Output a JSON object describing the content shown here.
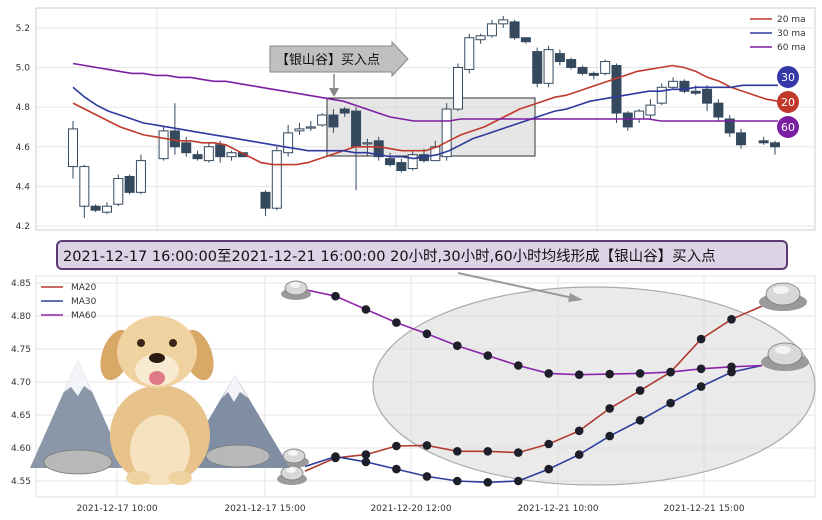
{
  "chart_data": [
    {
      "type": "candlestick",
      "title": "",
      "ylim": [
        4.18,
        5.3
      ],
      "y_ticks": [
        "5.2",
        "5.0",
        "4.8",
        "4.6",
        "4.4",
        "4.2"
      ],
      "legend": {
        "position": "top-right",
        "entries": [
          "20 ma",
          "30 ma",
          "60 ma"
        ]
      },
      "callout": "【银山谷】买入点",
      "badges": [
        "30",
        "20",
        "60"
      ],
      "candles": [
        [
          4.5,
          4.69,
          4.44,
          4.73
        ],
        [
          4.3,
          4.5,
          4.24,
          4.51
        ],
        [
          4.3,
          4.28,
          4.27,
          4.31
        ],
        [
          4.27,
          4.3,
          4.26,
          4.32
        ],
        [
          4.31,
          4.44,
          4.3,
          4.46
        ],
        [
          4.45,
          4.37,
          4.36,
          4.46
        ],
        [
          4.37,
          4.53,
          4.36,
          4.56
        ],
        [
          null,
          null,
          null,
          null
        ],
        [
          4.54,
          4.68,
          4.53,
          4.7
        ],
        [
          4.68,
          4.6,
          4.56,
          4.82
        ],
        [
          4.62,
          4.57,
          4.55,
          4.65
        ],
        [
          4.56,
          4.54,
          4.53,
          4.58
        ],
        [
          4.53,
          4.6,
          4.52,
          4.62
        ],
        [
          4.61,
          4.55,
          4.52,
          4.63
        ],
        [
          4.55,
          4.57,
          4.53,
          4.58
        ],
        [
          4.57,
          4.55,
          4.55,
          4.57
        ],
        [
          null,
          null,
          null,
          null
        ],
        [
          4.37,
          4.29,
          4.25,
          4.38
        ],
        [
          4.29,
          4.58,
          4.28,
          4.6
        ],
        [
          4.57,
          4.67,
          4.55,
          4.71
        ],
        [
          4.68,
          4.69,
          4.66,
          4.72
        ],
        [
          4.7,
          4.7,
          4.68,
          4.73
        ],
        [
          4.71,
          4.76,
          4.7,
          4.77
        ],
        [
          4.76,
          4.7,
          4.67,
          4.79
        ],
        [
          4.79,
          4.77,
          4.75,
          4.8
        ],
        [
          4.78,
          4.6,
          4.38,
          4.8
        ],
        [
          4.62,
          4.62,
          4.55,
          4.64
        ],
        [
          4.63,
          4.55,
          4.53,
          4.65
        ],
        [
          4.54,
          4.51,
          4.5,
          4.57
        ],
        [
          4.52,
          4.48,
          4.47,
          4.54
        ],
        [
          4.49,
          4.56,
          4.48,
          4.58
        ],
        [
          4.56,
          4.53,
          4.52,
          4.59
        ],
        [
          4.53,
          4.6,
          4.53,
          4.63
        ],
        [
          4.55,
          4.79,
          4.53,
          4.82
        ],
        [
          4.79,
          5.0,
          4.78,
          5.02
        ],
        [
          4.99,
          5.15,
          4.97,
          5.17
        ],
        [
          5.14,
          5.16,
          5.12,
          5.17
        ],
        [
          5.16,
          5.22,
          5.15,
          5.24
        ],
        [
          5.22,
          5.24,
          5.2,
          5.26
        ],
        [
          5.23,
          5.15,
          5.14,
          5.24
        ],
        [
          5.15,
          5.13,
          5.12,
          5.15
        ],
        [
          5.08,
          4.92,
          4.9,
          5.1
        ],
        [
          4.92,
          5.09,
          4.9,
          5.11
        ],
        [
          5.07,
          5.03,
          5.01,
          5.09
        ],
        [
          5.04,
          5.0,
          4.99,
          5.05
        ],
        [
          5.0,
          4.97,
          4.96,
          5.01
        ],
        [
          4.97,
          4.96,
          4.94,
          4.98
        ],
        [
          4.97,
          5.03,
          4.96,
          5.04
        ],
        [
          5.01,
          4.77,
          4.72,
          5.02
        ],
        [
          4.77,
          4.7,
          4.68,
          4.78
        ],
        [
          4.74,
          4.78,
          4.72,
          4.79
        ],
        [
          4.76,
          4.81,
          4.74,
          4.84
        ],
        [
          4.82,
          4.9,
          4.81,
          4.92
        ],
        [
          4.9,
          4.93,
          4.89,
          4.95
        ],
        [
          4.93,
          4.88,
          4.87,
          4.94
        ],
        [
          4.88,
          4.87,
          4.86,
          4.91
        ],
        [
          4.89,
          4.82,
          4.78,
          4.91
        ],
        [
          4.82,
          4.75,
          4.73,
          4.84
        ],
        [
          4.74,
          4.67,
          4.65,
          4.76
        ],
        [
          4.67,
          4.61,
          4.59,
          4.69
        ],
        [
          null,
          null,
          null,
          null
        ],
        [
          4.63,
          4.62,
          4.61,
          4.65
        ],
        [
          4.62,
          4.6,
          4.56,
          4.63
        ]
      ],
      "series": [
        {
          "name": "20 ma",
          "color": "#c0392b",
          "values": [
            4.82,
            4.79,
            4.76,
            4.73,
            4.7,
            4.68,
            4.66,
            4.65,
            4.64,
            4.63,
            4.63,
            4.62,
            4.62,
            4.61,
            4.58,
            4.55,
            4.52,
            4.51,
            4.51,
            4.51,
            4.52,
            4.54,
            4.56,
            4.58,
            4.6,
            4.6,
            4.6,
            4.59,
            4.58,
            4.58,
            4.58,
            4.6,
            4.63,
            4.66,
            4.68,
            4.7,
            4.73,
            4.76,
            4.79,
            4.81,
            4.83,
            4.85,
            4.86,
            4.88,
            4.9,
            4.92,
            4.94,
            4.96,
            4.98,
            4.99,
            5.0,
            5.01,
            5.0,
            4.98,
            4.95,
            4.93,
            4.9,
            4.88,
            4.86,
            4.84,
            4.83
          ]
        },
        {
          "name": "30 ma",
          "color": "#2e3a9e",
          "values": [
            4.9,
            4.85,
            4.81,
            4.78,
            4.76,
            4.74,
            4.72,
            4.71,
            4.7,
            4.69,
            4.68,
            4.67,
            4.66,
            4.65,
            4.64,
            4.63,
            4.62,
            4.61,
            4.6,
            4.59,
            4.58,
            4.58,
            4.58,
            4.58,
            4.57,
            4.57,
            4.56,
            4.55,
            4.55,
            4.54,
            4.55,
            4.56,
            4.58,
            4.61,
            4.64,
            4.66,
            4.68,
            4.7,
            4.72,
            4.74,
            4.76,
            4.78,
            4.79,
            4.81,
            4.83,
            4.84,
            4.85,
            4.86,
            4.87,
            4.88,
            4.88,
            4.89,
            4.89,
            4.9,
            4.9,
            4.9,
            4.9,
            4.91,
            4.91,
            4.91,
            4.91
          ]
        },
        {
          "name": "60 ma",
          "color": "#7b1fa2",
          "values": [
            5.02,
            5.01,
            5.0,
            4.99,
            4.98,
            4.97,
            4.97,
            4.96,
            4.96,
            4.95,
            4.95,
            4.94,
            4.93,
            4.93,
            4.92,
            4.91,
            4.9,
            4.89,
            4.88,
            4.87,
            4.86,
            4.85,
            4.84,
            4.83,
            4.81,
            4.79,
            4.77,
            4.75,
            4.74,
            4.73,
            4.73,
            4.73,
            4.73,
            4.74,
            4.74,
            4.74,
            4.74,
            4.74,
            4.74,
            4.74,
            4.74,
            4.74,
            4.74,
            4.74,
            4.74,
            4.74,
            4.74,
            4.74,
            4.74,
            4.74,
            4.73,
            4.73,
            4.73,
            4.73,
            4.73,
            4.73,
            4.73,
            4.73,
            4.73,
            4.73,
            4.73
          ]
        }
      ]
    },
    {
      "type": "line",
      "title": "2021-12-17 16:00:00至2021-12-21 16:00:00 20小时,30小时,60小时均线形成【银山谷】买入点",
      "ylim": [
        4.53,
        4.86
      ],
      "y_ticks": [
        "4.85",
        "4.80",
        "4.75",
        "4.70",
        "4.65",
        "4.60",
        "4.55"
      ],
      "x_ticks": [
        "2021-12-17 10:00",
        "2021-12-17 15:00",
        "2021-12-20 12:00",
        "2021-12-21 10:00",
        "2021-12-21 15:00"
      ],
      "legend": {
        "position": "top-left",
        "entries": [
          "MA20",
          "MA30",
          "MA60"
        ]
      },
      "series": [
        {
          "name": "MA20",
          "color": "#b03a2e",
          "values": [
            4.565,
            4.585,
            4.59,
            4.603,
            4.604,
            4.595,
            4.595,
            4.593,
            4.606,
            4.626,
            4.66,
            4.687,
            4.715,
            4.765,
            4.795,
            4.815
          ]
        },
        {
          "name": "MA30",
          "color": "#2c3e9e",
          "values": [
            4.572,
            4.587,
            4.579,
            4.568,
            4.557,
            4.55,
            4.548,
            4.55,
            4.568,
            4.59,
            4.618,
            4.642,
            4.668,
            4.693,
            4.715,
            4.725
          ]
        },
        {
          "name": "MA60",
          "color": "#8e24aa",
          "values": [
            4.84,
            4.83,
            4.81,
            4.79,
            4.773,
            4.755,
            4.74,
            4.725,
            4.713,
            4.711,
            4.712,
            4.713,
            4.715,
            4.72,
            4.723,
            4.725
          ]
        }
      ]
    }
  ]
}
